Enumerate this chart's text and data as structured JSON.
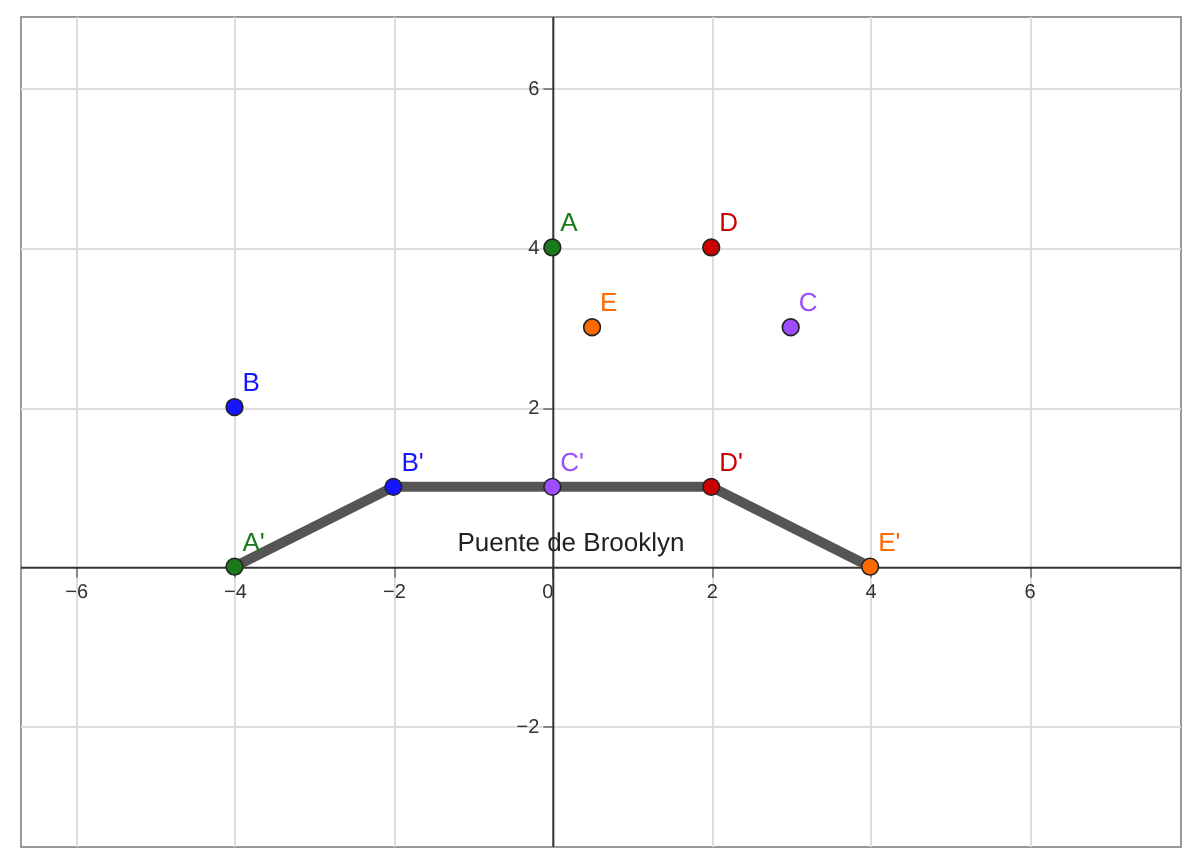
{
  "chart_data": {
    "type": "scatter",
    "xlim": [
      -6.7,
      7.9
    ],
    "ylim": [
      -3.5,
      6.9
    ],
    "xticks": [
      -6,
      -4,
      -2,
      0,
      2,
      4,
      6
    ],
    "yticks": [
      -2,
      2,
      4,
      6
    ],
    "grid": true,
    "marker": "circle",
    "annotations": [
      "Puente de Brooklyn"
    ],
    "series": [
      {
        "type": "line",
        "color": "#555555",
        "x": [
          -4,
          -2,
          0,
          2,
          4
        ],
        "values": [
          0,
          1,
          1,
          1,
          0
        ],
        "line_style": "solid",
        "marker": "none"
      },
      {
        "name": "A",
        "color": "#1a7a1a",
        "x": [
          0
        ],
        "values": [
          4
        ]
      },
      {
        "name": "B",
        "color": "#1515ff",
        "x": [
          -4
        ],
        "values": [
          2
        ]
      },
      {
        "name": "C",
        "color": "#9b4dff",
        "x": [
          3
        ],
        "values": [
          3
        ]
      },
      {
        "name": "D",
        "color": "#cc0000",
        "x": [
          2
        ],
        "values": [
          4
        ]
      },
      {
        "name": "E",
        "color": "#ff6a00",
        "x": [
          0.5
        ],
        "values": [
          3
        ]
      },
      {
        "name": "A'",
        "color": "#1a7a1a",
        "x": [
          -4
        ],
        "values": [
          0
        ]
      },
      {
        "name": "B'",
        "color": "#1515ff",
        "x": [
          -2
        ],
        "values": [
          1
        ]
      },
      {
        "name": "C'",
        "color": "#9b4dff",
        "x": [
          0
        ],
        "values": [
          1
        ]
      },
      {
        "name": "D'",
        "color": "#cc0000",
        "x": [
          2
        ],
        "values": [
          1
        ]
      },
      {
        "name": "E'",
        "color": "#ff6a00",
        "x": [
          4
        ],
        "values": [
          0
        ]
      }
    ]
  }
}
